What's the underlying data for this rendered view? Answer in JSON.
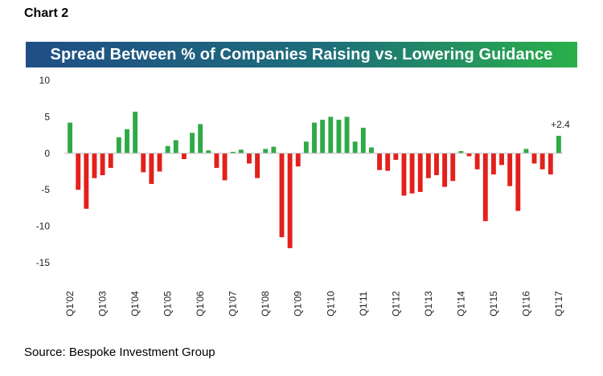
{
  "header": {
    "label": "Chart 2"
  },
  "colors": {
    "positive": "#2eaa47",
    "negative": "#e3201b",
    "banner_start": "#1f4e86",
    "banner_end": "#2ab04a"
  },
  "footer": {
    "source": "Source: Bespoke Investment Group"
  },
  "chart_data": {
    "type": "bar",
    "title": "Spread Between % of Companies Raising vs. Lowering Guidance",
    "xlabel": "",
    "ylabel": "",
    "ylim": [
      -15,
      10
    ],
    "yticks": [
      10,
      5,
      0,
      -5,
      -10,
      -15
    ],
    "grid": false,
    "legend": "none",
    "annotation": {
      "text": "+2.4",
      "category": "Q1'17"
    },
    "categories": [
      "Q1'02",
      "Q2'02",
      "Q3'02",
      "Q4'02",
      "Q1'03",
      "Q2'03",
      "Q3'03",
      "Q4'03",
      "Q1'04",
      "Q2'04",
      "Q3'04",
      "Q4'04",
      "Q1'05",
      "Q2'05",
      "Q3'05",
      "Q4'05",
      "Q1'06",
      "Q2'06",
      "Q3'06",
      "Q4'06",
      "Q1'07",
      "Q2'07",
      "Q3'07",
      "Q4'07",
      "Q1'08",
      "Q2'08",
      "Q3'08",
      "Q4'08",
      "Q1'09",
      "Q2'09",
      "Q3'09",
      "Q4'09",
      "Q1'10",
      "Q2'10",
      "Q3'10",
      "Q4'10",
      "Q1'11",
      "Q2'11",
      "Q3'11",
      "Q4'11",
      "Q1'12",
      "Q2'12",
      "Q3'12",
      "Q4'12",
      "Q1'13",
      "Q2'13",
      "Q3'13",
      "Q4'13",
      "Q1'14",
      "Q2'14",
      "Q3'14",
      "Q4'14",
      "Q1'15",
      "Q2'15",
      "Q3'15",
      "Q4'15",
      "Q1'16",
      "Q2'16",
      "Q3'16",
      "Q4'16",
      "Q1'17"
    ],
    "tick_labels": [
      "Q1'02",
      "Q1'03",
      "Q1'04",
      "Q1'05",
      "Q1'06",
      "Q1'07",
      "Q1'08",
      "Q1'09",
      "Q1'10",
      "Q1'11",
      "Q1'12",
      "Q1'13",
      "Q1'14",
      "Q1'15",
      "Q1'16",
      "Q1'17"
    ],
    "values": [
      4.2,
      -5.0,
      -7.6,
      -3.4,
      -3.0,
      -2.0,
      2.2,
      3.3,
      5.7,
      -2.6,
      -4.2,
      -2.5,
      1.0,
      1.8,
      -0.8,
      2.8,
      4.0,
      0.4,
      -2.0,
      -3.7,
      0.2,
      0.5,
      -1.4,
      -3.4,
      0.6,
      0.9,
      -11.5,
      -13.0,
      -1.8,
      1.6,
      4.2,
      4.6,
      5.0,
      4.6,
      5.0,
      1.6,
      3.5,
      0.8,
      -2.3,
      -2.4,
      -0.9,
      -5.8,
      -5.5,
      -5.3,
      -3.4,
      -3.0,
      -4.6,
      -3.8,
      0.3,
      -0.4,
      -2.2,
      -9.3,
      -2.9,
      -1.6,
      -4.5,
      -7.9,
      0.6,
      -1.4,
      -2.2,
      -2.9,
      2.4
    ]
  }
}
